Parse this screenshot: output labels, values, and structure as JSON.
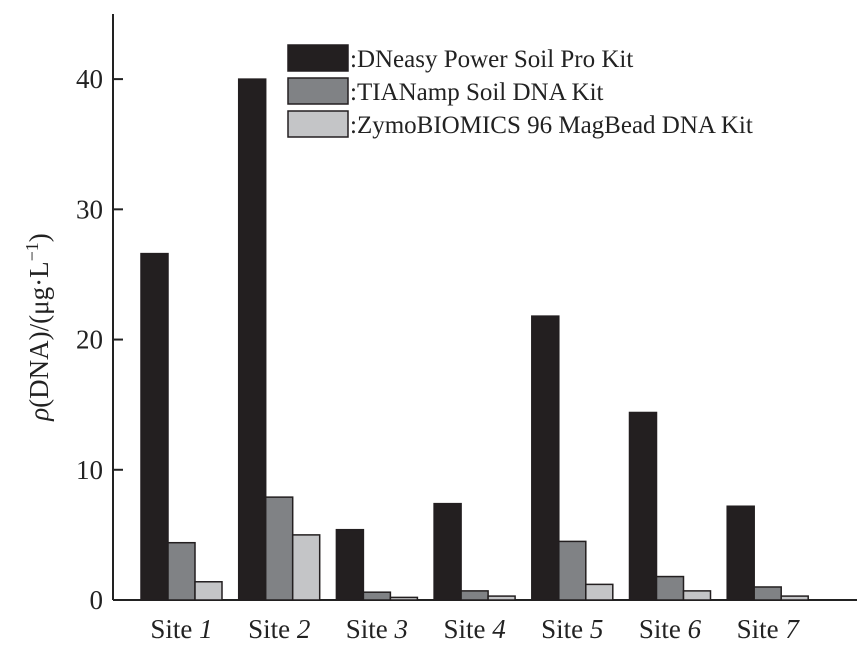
{
  "chart_data": {
    "type": "bar",
    "categories": [
      "Site 1",
      "Site 2",
      "Site 3",
      "Site 4",
      "Site 5",
      "Site 6",
      "Site 7"
    ],
    "category_parts": [
      {
        "prefix": "Site ",
        "num": "1"
      },
      {
        "prefix": "Site ",
        "num": "2"
      },
      {
        "prefix": "Site ",
        "num": "3"
      },
      {
        "prefix": "Site ",
        "num": "4"
      },
      {
        "prefix": "Site ",
        "num": "5"
      },
      {
        "prefix": "Site ",
        "num": "6"
      },
      {
        "prefix": "Site ",
        "num": "7"
      }
    ],
    "series": [
      {
        "name": ":DNeasy Power Soil Pro Kit",
        "color": "#231f20",
        "values": [
          26.6,
          40.0,
          5.4,
          7.4,
          21.8,
          14.4,
          7.2
        ]
      },
      {
        "name": ":TIANamp Soil DNA Kit",
        "color": "#808285",
        "values": [
          4.4,
          7.9,
          0.6,
          0.7,
          4.5,
          1.8,
          1.0
        ]
      },
      {
        "name": ":ZymoBIOMICS 96 MagBead DNA Kit",
        "color": "#c4c5c7",
        "values": [
          1.4,
          5.0,
          0.2,
          0.3,
          1.2,
          0.7,
          0.3
        ]
      }
    ],
    "ylabel": "ρ(DNA)/(μg·L⁻¹)",
    "ylabel_parts": {
      "rho": "ρ",
      "main": "(DNA)/(μg·L",
      "sup": "−1",
      "close": ")"
    },
    "ylim": [
      0,
      45
    ],
    "yticks": [
      0,
      10,
      20,
      30,
      40
    ],
    "legend_position": "top-right",
    "grid": false
  }
}
